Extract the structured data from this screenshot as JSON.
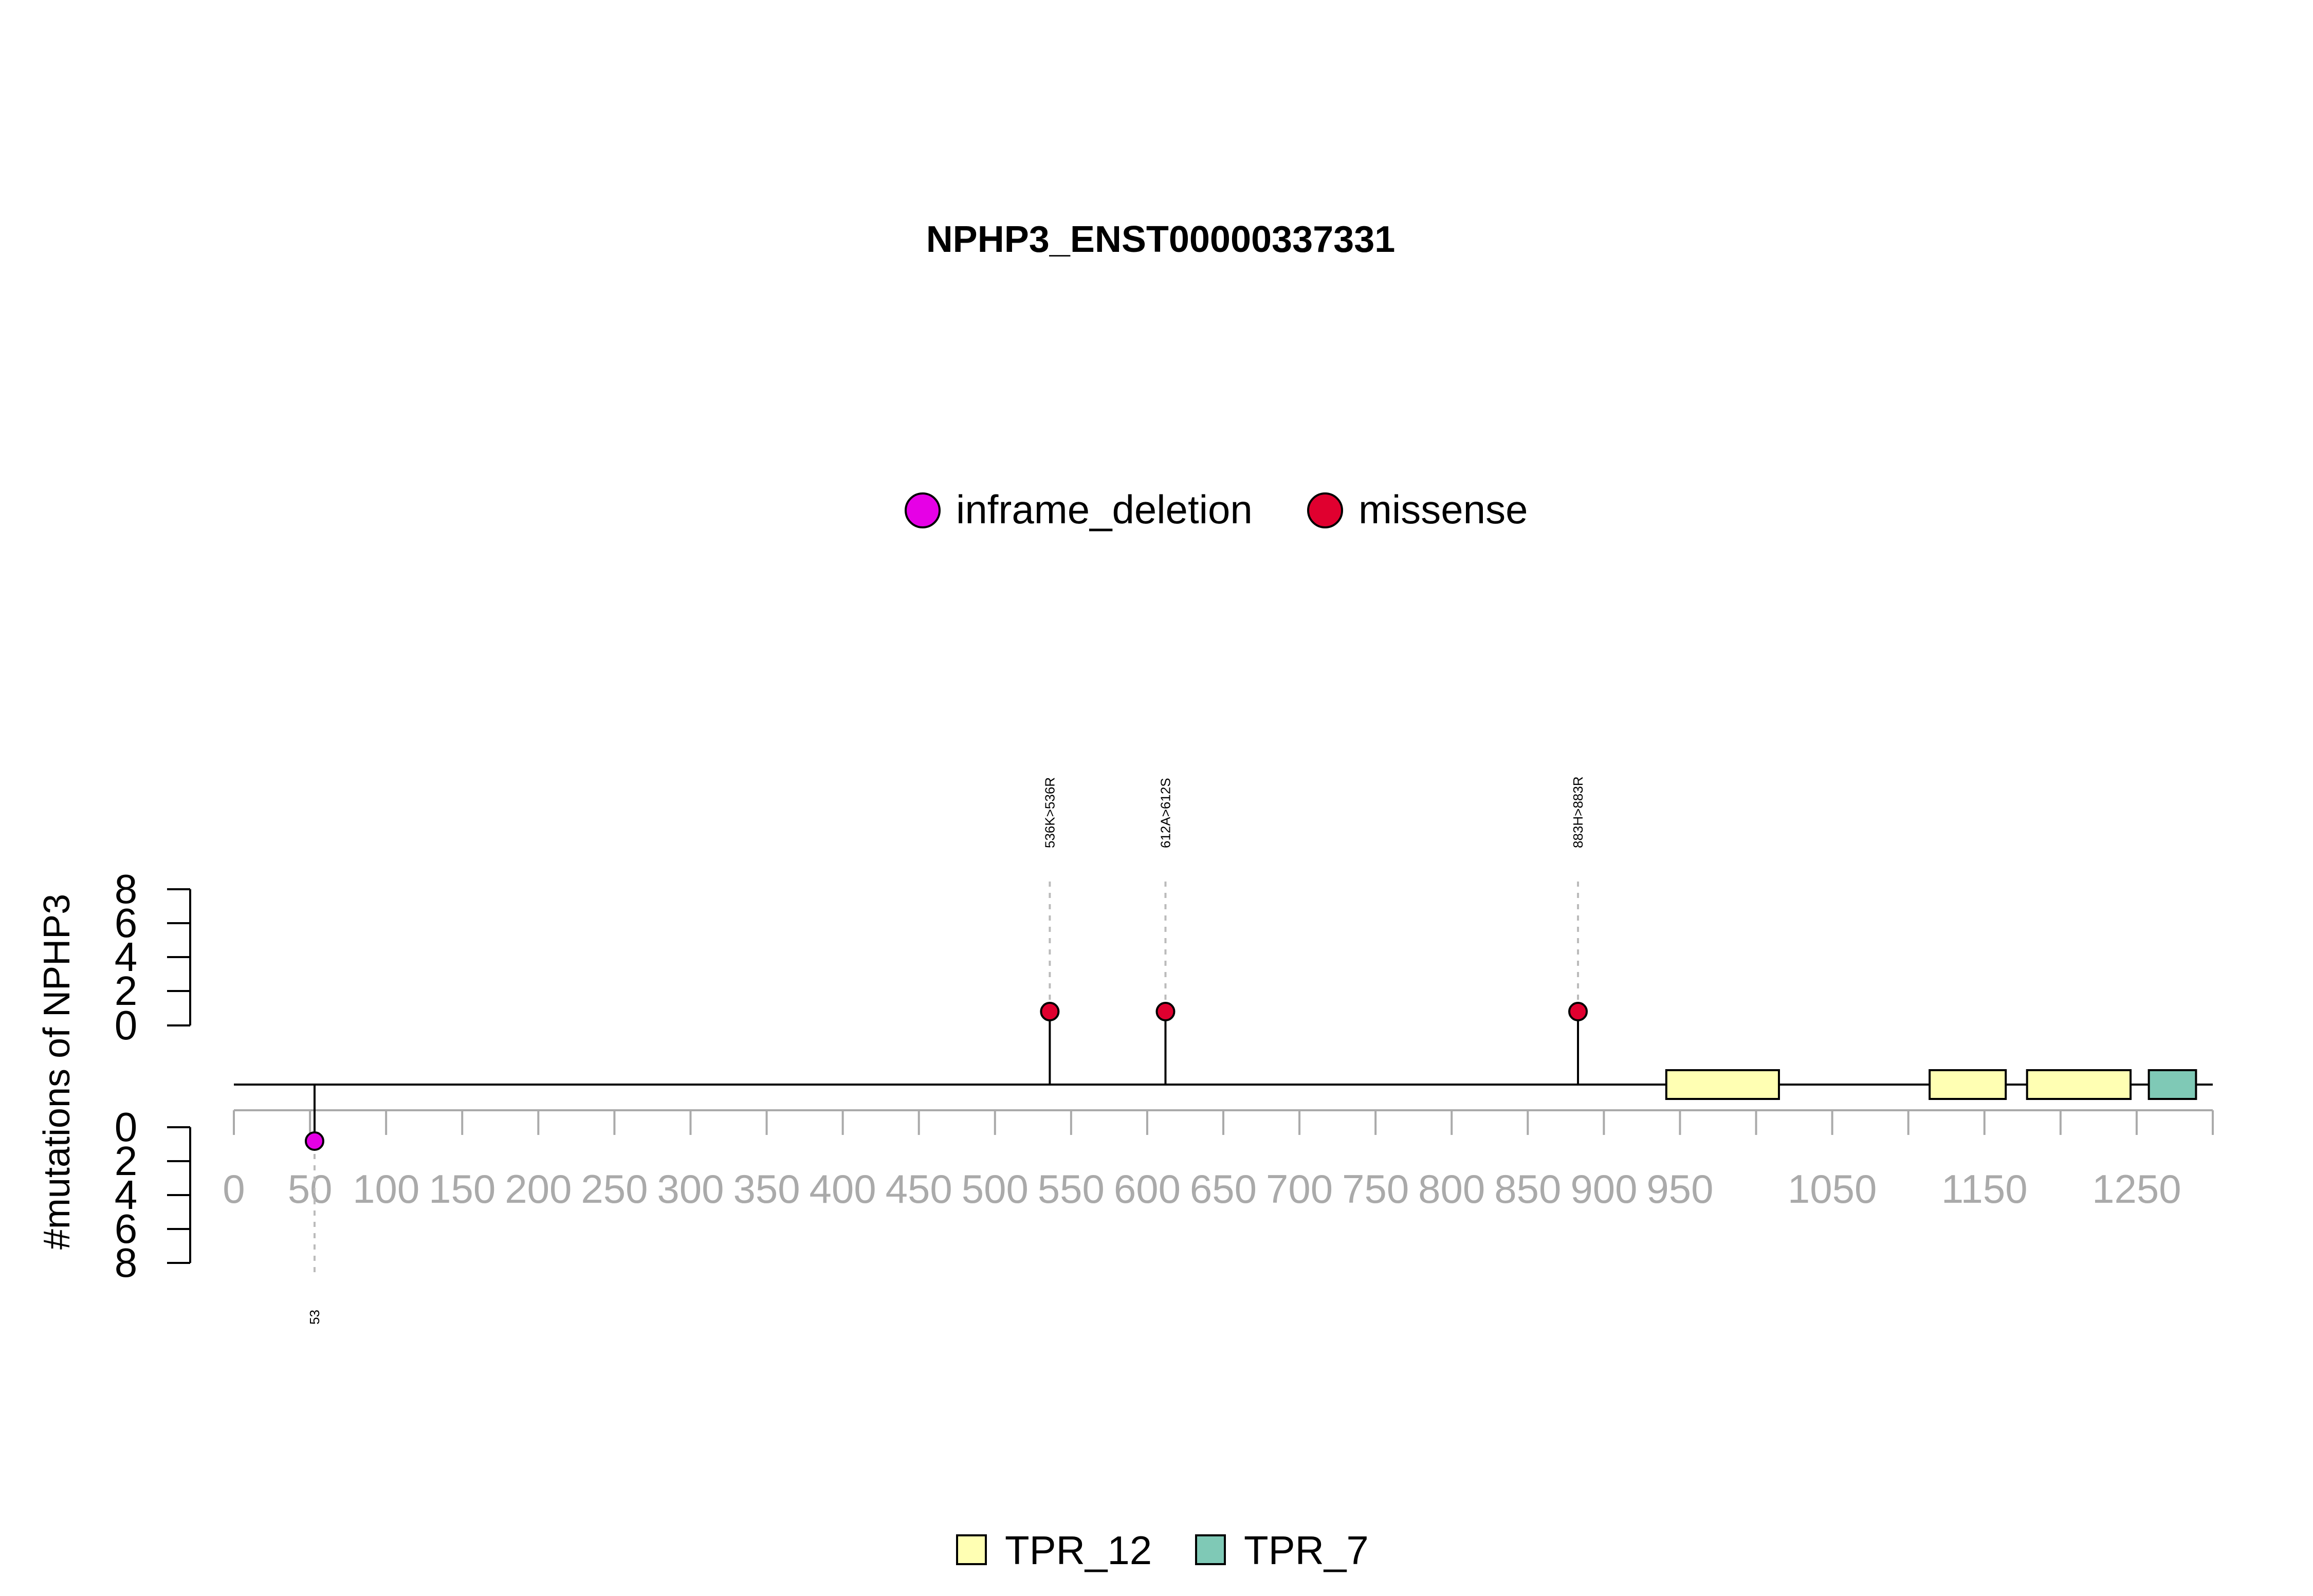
{
  "chart_data": {
    "type": "lollipop",
    "title": "NPHP3_ENST00000337331",
    "ylabel": "#mutations of NPHP3",
    "colors": {
      "inframe_deletion": "#E600E6",
      "missense": "#E0002F",
      "TPR_12": "#FFFFB3",
      "TPR_7": "#7FC9B6",
      "axis_gray": "#AAAAAA",
      "leader_gray": "#BBBBBB"
    },
    "legend_top": [
      {
        "label": "inframe_deletion",
        "color": "#E600E6"
      },
      {
        "label": "missense",
        "color": "#E0002F"
      }
    ],
    "legend_bottom": [
      {
        "label": "TPR_12",
        "color": "#FFFFB3"
      },
      {
        "label": "TPR_7",
        "color": "#7FC9B6"
      }
    ],
    "x_range": [
      0,
      1300
    ],
    "x_ticks": [
      0,
      50,
      100,
      150,
      200,
      250,
      300,
      350,
      400,
      450,
      500,
      550,
      600,
      650,
      700,
      750,
      800,
      850,
      900,
      950,
      1000,
      1050,
      1100,
      1150,
      1200,
      1250,
      1300
    ],
    "x_tick_labels": [
      "0",
      "50",
      "100",
      "150",
      "200",
      "250",
      "300",
      "350",
      "400",
      "450",
      "500",
      "550",
      "600",
      "650",
      "700",
      "750",
      "800",
      "850",
      "900",
      "950",
      "",
      "1050",
      "",
      "1150",
      "",
      "1250",
      ""
    ],
    "y_ticks_top": [
      "0",
      "2",
      "4",
      "6",
      "8"
    ],
    "y_ticks_bottom": [
      "0",
      "2",
      "4",
      "6",
      "8"
    ],
    "mutations": [
      {
        "position": 53,
        "label": "53",
        "type": "inframe_deletion",
        "count": 1,
        "side": "bottom"
      },
      {
        "position": 536,
        "label": "536K>536R",
        "type": "missense",
        "count": 1,
        "side": "top"
      },
      {
        "position": 612,
        "label": "612A>612S",
        "type": "missense",
        "count": 1,
        "side": "top"
      },
      {
        "position": 883,
        "label": "883H>883R",
        "type": "missense",
        "count": 1,
        "side": "top"
      }
    ],
    "domains": [
      {
        "name": "TPR_12",
        "start": 941,
        "end": 1015
      },
      {
        "name": "TPR_12",
        "start": 1114,
        "end": 1164
      },
      {
        "name": "TPR_12",
        "start": 1178,
        "end": 1246
      },
      {
        "name": "TPR_7",
        "start": 1258,
        "end": 1289
      }
    ]
  }
}
